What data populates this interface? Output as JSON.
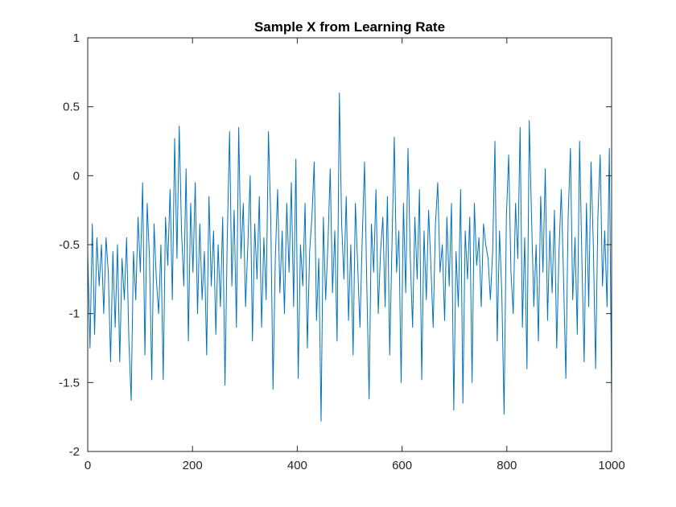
{
  "chart_data": {
    "type": "line",
    "title": "Sample X from Learning Rate",
    "xlabel": "",
    "ylabel": "",
    "xlim": [
      0,
      1000
    ],
    "ylim": [
      -2,
      1
    ],
    "xticks": [
      0,
      200,
      400,
      600,
      800,
      1000
    ],
    "xtick_labels": [
      "0",
      "200",
      "400",
      "600",
      "800",
      "1000"
    ],
    "yticks": [
      -2,
      -1.5,
      -1,
      -0.5,
      0,
      0.5,
      1
    ],
    "ytick_labels": [
      "-2",
      "-1.5",
      "-1",
      "-0.5",
      "0",
      "0.5",
      "1"
    ],
    "grid": false,
    "legend": false,
    "line_color": "#0072BD",
    "series": [
      {
        "values": [
          -0.55,
          -1.25,
          -0.35,
          -1.15,
          -0.45,
          -0.8,
          -0.5,
          -1.0,
          -0.45,
          -0.7,
          -1.35,
          -0.55,
          -1.1,
          -0.5,
          -1.35,
          -0.6,
          -0.9,
          -0.45,
          -1.2,
          -1.63,
          -0.55,
          -0.9,
          -0.3,
          -0.7,
          -0.05,
          -1.3,
          -0.2,
          -0.6,
          -1.48,
          -0.35,
          -0.75,
          -1.0,
          -0.5,
          -1.48,
          -0.3,
          -0.65,
          -0.1,
          -0.9,
          0.27,
          -0.6,
          0.36,
          -0.4,
          -0.8,
          0.05,
          -1.2,
          -0.2,
          -0.7,
          -0.05,
          -1.0,
          -0.35,
          -0.9,
          -0.55,
          -1.3,
          -0.15,
          -0.8,
          -0.4,
          -1.15,
          -0.5,
          -0.95,
          -0.3,
          -1.52,
          -0.45,
          0.32,
          -0.8,
          -0.25,
          -1.1,
          0.35,
          -0.6,
          -0.2,
          -0.95,
          -0.5,
          0.0,
          -1.2,
          -0.35,
          -0.75,
          -0.15,
          -1.1,
          -0.45,
          -0.9,
          0.32,
          -0.3,
          -1.55,
          -0.6,
          -0.1,
          -0.85,
          -0.4,
          -1.0,
          -0.2,
          -0.7,
          -0.05,
          -0.95,
          0.12,
          -1.47,
          -0.5,
          -0.8,
          -0.2,
          -1.25,
          -0.55,
          -0.3,
          0.1,
          -1.05,
          -0.6,
          -1.78,
          -0.3,
          -0.9,
          -0.5,
          0.05,
          -0.85,
          -0.4,
          -1.2,
          0.6,
          -0.35,
          -0.75,
          -0.15,
          -1.05,
          -0.5,
          -1.3,
          -0.2,
          -0.65,
          -1.1,
          -0.45,
          0.1,
          -0.8,
          -1.62,
          -0.35,
          -0.7,
          -0.1,
          -1.0,
          -0.55,
          -0.3,
          -0.95,
          -0.15,
          -1.3,
          -0.5,
          0.28,
          -0.7,
          -0.4,
          -1.5,
          -0.2,
          -0.85,
          0.2,
          -0.6,
          -1.1,
          -0.3,
          -0.75,
          -0.1,
          -1.48,
          -0.4,
          -0.9,
          -0.25,
          -0.65,
          -1.1,
          -0.35,
          -0.05,
          -0.7,
          -0.5,
          -1.05,
          -0.3,
          -0.8,
          -0.2,
          -1.7,
          -0.55,
          -0.95,
          -0.1,
          -1.65,
          -0.4,
          -0.75,
          -0.3,
          -1.5,
          -0.2,
          -0.65,
          -0.45,
          -0.95,
          -0.35,
          -0.5,
          -0.6,
          -0.9,
          -0.55,
          0.25,
          -1.2,
          -0.4,
          -0.85,
          -1.73,
          -0.3,
          0.15,
          -0.7,
          -1.0,
          -0.2,
          -0.6,
          0.35,
          -1.1,
          -0.45,
          -1.4,
          0.4,
          -0.3,
          -0.95,
          -0.5,
          -1.2,
          -0.15,
          -0.7,
          0.05,
          -1.05,
          -0.4,
          -0.85,
          -0.25,
          -1.25,
          -0.55,
          -0.1,
          -0.75,
          -1.47,
          -0.3,
          0.2,
          -0.9,
          -0.45,
          -1.15,
          0.25,
          -0.6,
          -1.35,
          -0.2,
          -0.95,
          0.1,
          -0.5,
          -1.4,
          -0.3,
          0.15,
          -0.8,
          -0.4,
          -0.95,
          0.2,
          -1.64
        ]
      }
    ]
  }
}
